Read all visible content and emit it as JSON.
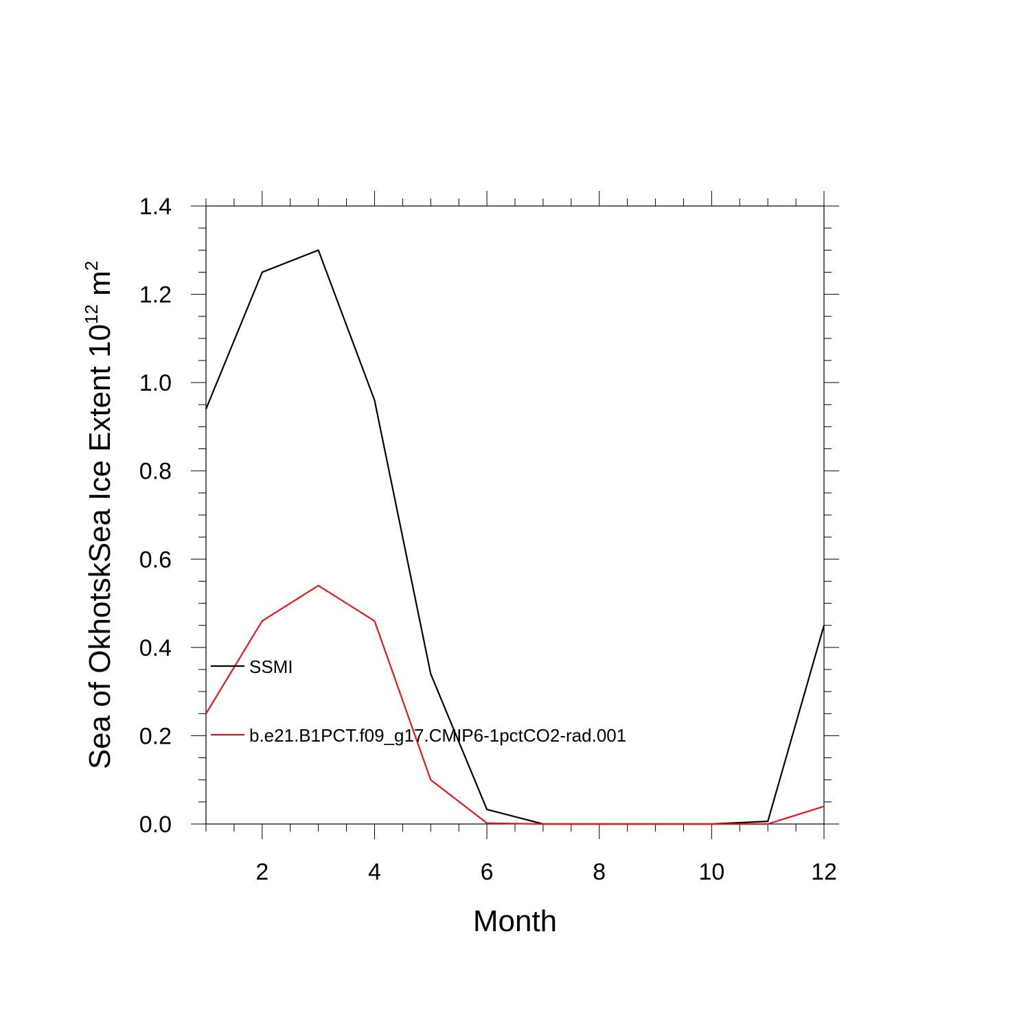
{
  "chart_data": {
    "type": "line",
    "xlabel": "Month",
    "ylabel": {
      "main": "Sea of OkhotskSea Ice Extent 10",
      "exponent": "12",
      "unit": " m",
      "unit_exponent": "2"
    },
    "xlim": [
      1,
      12
    ],
    "ylim": [
      0,
      1.4
    ],
    "x_ticks": [
      2,
      4,
      6,
      8,
      10,
      12
    ],
    "x_tick_labels": [
      "2",
      "4",
      "6",
      "8",
      "10",
      "12"
    ],
    "y_ticks": [
      0,
      0.2,
      0.4,
      0.6,
      0.8,
      1.0,
      1.2,
      1.4
    ],
    "y_tick_labels": [
      "0.0",
      "0.2",
      "0.4",
      "0.6",
      "0.8",
      "1.0",
      "1.2",
      "1.4"
    ],
    "grid": false,
    "legend_position": "inside-left",
    "x": [
      1,
      2,
      3,
      4,
      5,
      6,
      7,
      8,
      9,
      10,
      11,
      12
    ],
    "series": [
      {
        "name": "SSMI",
        "color": "#000000",
        "values": [
          0.94,
          1.25,
          1.3,
          0.96,
          0.34,
          0.033,
          0.0,
          0.0,
          0.0,
          0.0,
          0.006,
          0.45
        ]
      },
      {
        "name": "b.e21.B1PCT.f09_g17.CMIP6-1pctCO2-rad.001",
        "color": "#e8141c",
        "values": [
          0.25,
          0.46,
          0.54,
          0.46,
          0.1,
          0.002,
          0.0,
          0.0,
          0.0,
          0.0,
          0.0,
          0.04
        ]
      }
    ]
  }
}
